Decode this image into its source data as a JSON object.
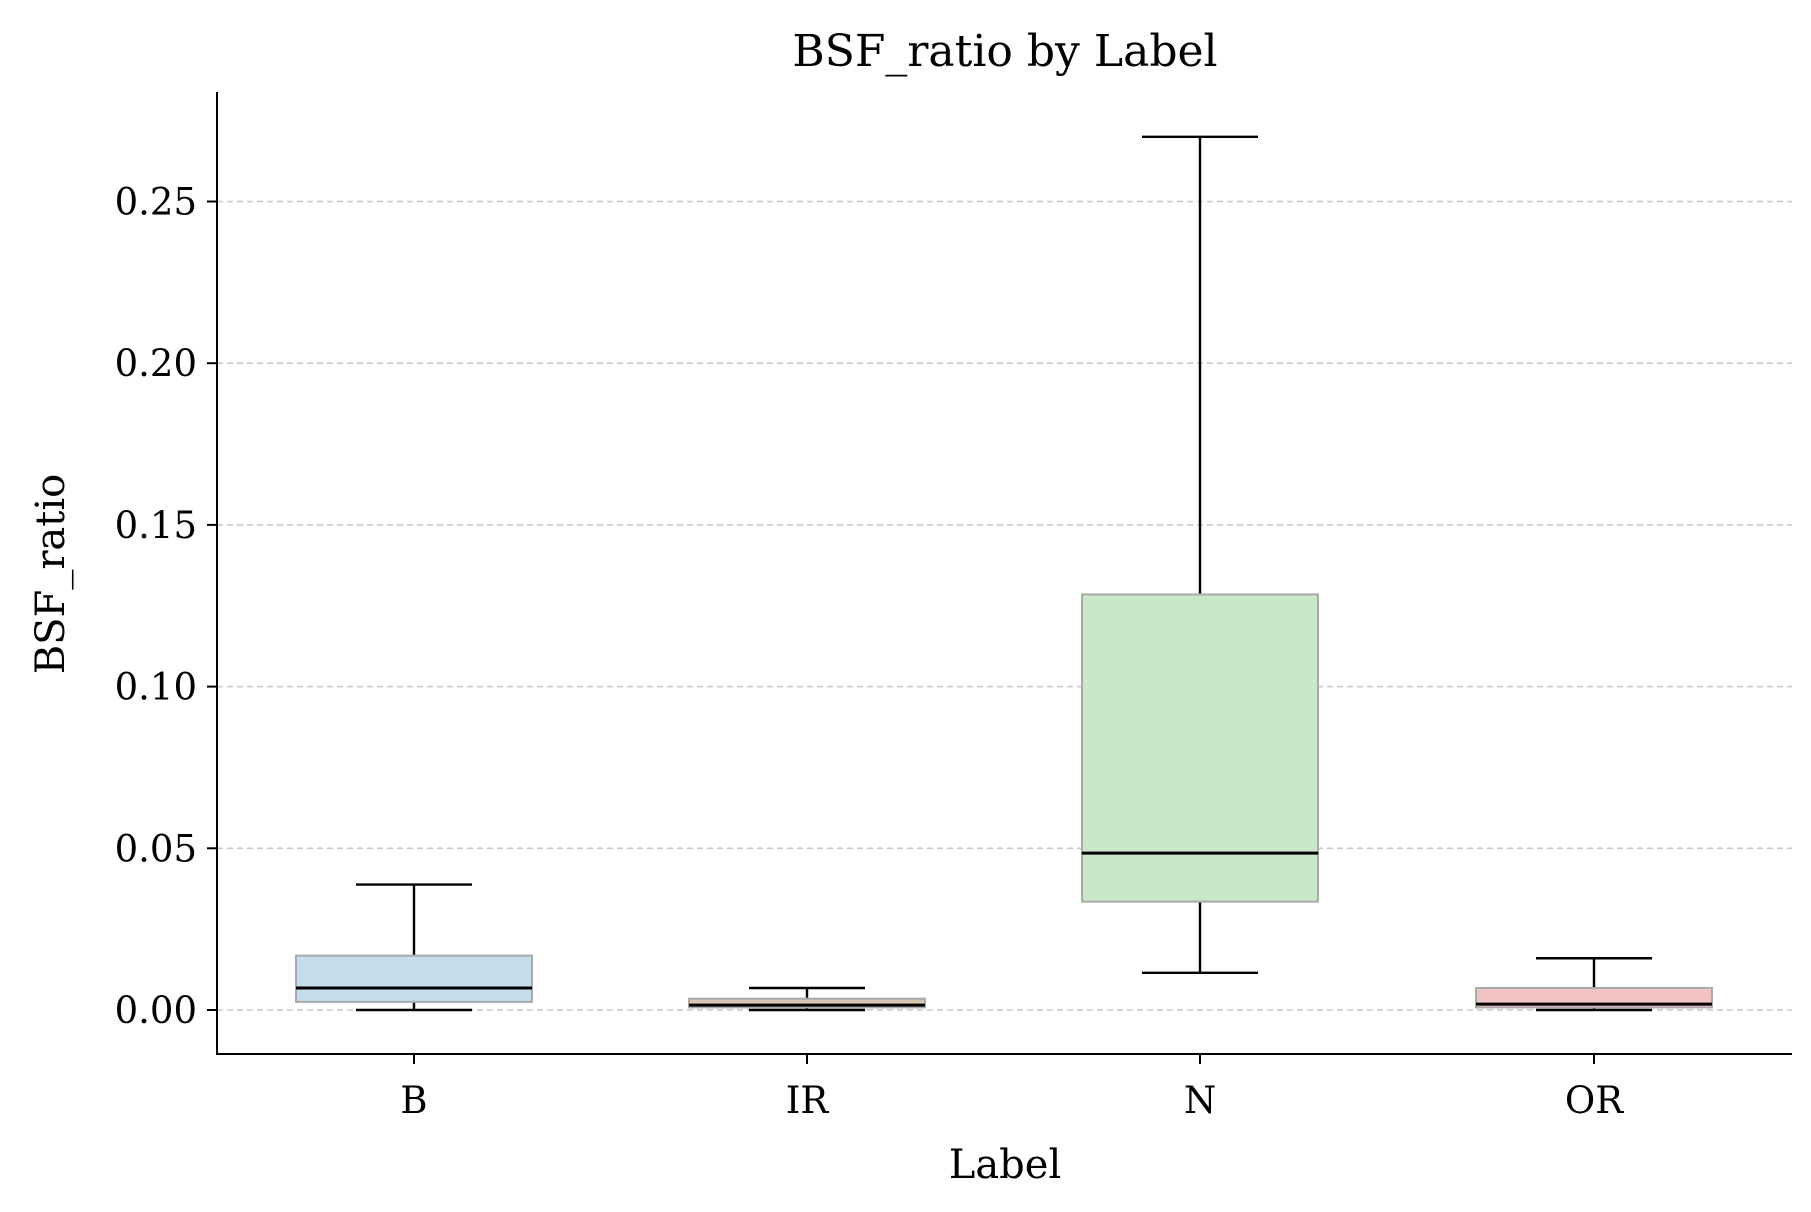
{
  "chart_data": {
    "type": "box",
    "title": "BSF_ratio by Label",
    "xlabel": "Label",
    "ylabel": "BSF_ratio",
    "categories": [
      "B",
      "IR",
      "N",
      "OR"
    ],
    "boxes": [
      {
        "label": "B",
        "whisker_low": 0.0,
        "q1": 0.0025,
        "median": 0.0068,
        "q3": 0.0168,
        "whisker_high": 0.0388,
        "color": "#c5dceb"
      },
      {
        "label": "IR",
        "whisker_low": 0.0,
        "q1": 0.0008,
        "median": 0.0015,
        "q3": 0.0035,
        "whisker_high": 0.0068,
        "color": "#d8c6b2"
      },
      {
        "label": "N",
        "whisker_low": 0.0115,
        "q1": 0.0335,
        "median": 0.0485,
        "q3": 0.1285,
        "whisker_high": 0.27,
        "color": "#cbe7c9"
      },
      {
        "label": "OR",
        "whisker_low": 0.0,
        "q1": 0.0008,
        "median": 0.0018,
        "q3": 0.0068,
        "whisker_high": 0.016,
        "color": "#f2c3c4"
      }
    ],
    "ylim": [
      -0.0136,
      0.2836
    ],
    "yticks": [
      0.0,
      0.05,
      0.1,
      0.15,
      0.2,
      0.25
    ],
    "ytick_labels": [
      "0.00",
      "0.05",
      "0.10",
      "0.15",
      "0.20",
      "0.25"
    ],
    "grid": {
      "axis": "y",
      "style": "dashed",
      "color": "#c8c8c8"
    },
    "box_edge_color": "#aaaaaa",
    "median_color": "#000000",
    "whisker_color": "#000000"
  }
}
